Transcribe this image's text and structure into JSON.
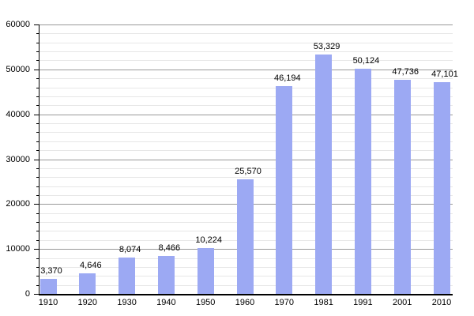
{
  "page": {
    "background": "#FFFFFF"
  },
  "chart_data": {
    "type": "bar",
    "title": "",
    "xlabel": "",
    "ylabel": "",
    "categories": [
      "1910",
      "1920",
      "1930",
      "1940",
      "1950",
      "1960",
      "1970",
      "1981",
      "1991",
      "2001",
      "2010"
    ],
    "values": [
      3370,
      4646,
      8074,
      8466,
      10224,
      25570,
      46194,
      53329,
      50124,
      47736,
      47101
    ],
    "value_labels": [
      "3,370",
      "4,646",
      "8,074",
      "8,466",
      "10,224",
      "25,570",
      "46,194",
      "53,329",
      "50,124",
      "47,736",
      "47,101"
    ],
    "ylim": [
      0,
      60000
    ],
    "y_major_interval": 10000,
    "y_minor_interval": 2000,
    "y_tick_labels": [
      "0",
      "10000",
      "20000",
      "30000",
      "40000",
      "50000",
      "60000"
    ],
    "grid": "horizontal major and minor",
    "legend": "none",
    "colors": {
      "bar_fill": "#9CA9F3",
      "major_grid": "#999999",
      "minor_grid": "#E7E7E7",
      "axis": "#000000",
      "text": "#000000",
      "background": "#FFFFFF"
    }
  }
}
